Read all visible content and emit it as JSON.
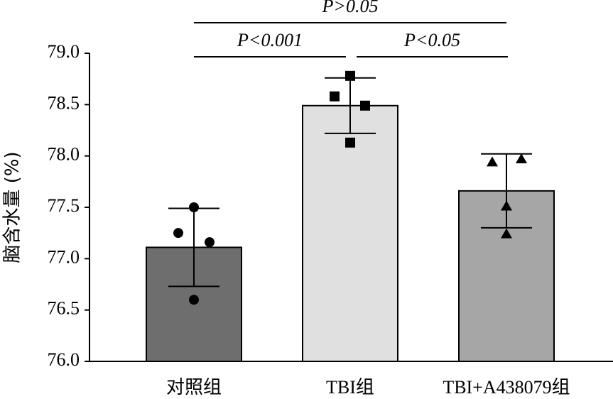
{
  "chart_data": {
    "type": "bar",
    "ylabel": "脑含水量 (%)",
    "categories": [
      "对照组",
      "TBI组",
      "TBI+A438079组"
    ],
    "values": [
      77.11,
      78.49,
      77.66
    ],
    "errors": [
      0.38,
      0.27,
      0.36
    ],
    "colors": [
      "#6e6e6e",
      "#e0e0e0",
      "#a6a6a6"
    ],
    "markers": [
      "circle",
      "square",
      "triangle"
    ],
    "points": [
      [
        77.5,
        77.25,
        77.16,
        76.6
      ],
      [
        78.78,
        78.58,
        78.49,
        78.13
      ],
      [
        77.94,
        77.97,
        77.51,
        77.24
      ]
    ],
    "ylim": [
      76.0,
      79.0
    ],
    "yticks": [
      {
        "value": 76.0,
        "label": "76.0"
      },
      {
        "value": 76.5,
        "label": "76.5"
      },
      {
        "value": 77.0,
        "label": "77.0"
      },
      {
        "value": 77.5,
        "label": "77.5"
      },
      {
        "value": 78.0,
        "label": "78.0"
      },
      {
        "value": 78.5,
        "label": "78.5"
      },
      {
        "value": 79.0,
        "label": "79.0"
      }
    ],
    "annotations": [
      {
        "text": "P>0.05",
        "from": 0,
        "to": 2
      },
      {
        "text": "P<0.001",
        "from": 0,
        "to": 1
      },
      {
        "text": "P<0.05",
        "from": 1,
        "to": 2
      }
    ]
  }
}
